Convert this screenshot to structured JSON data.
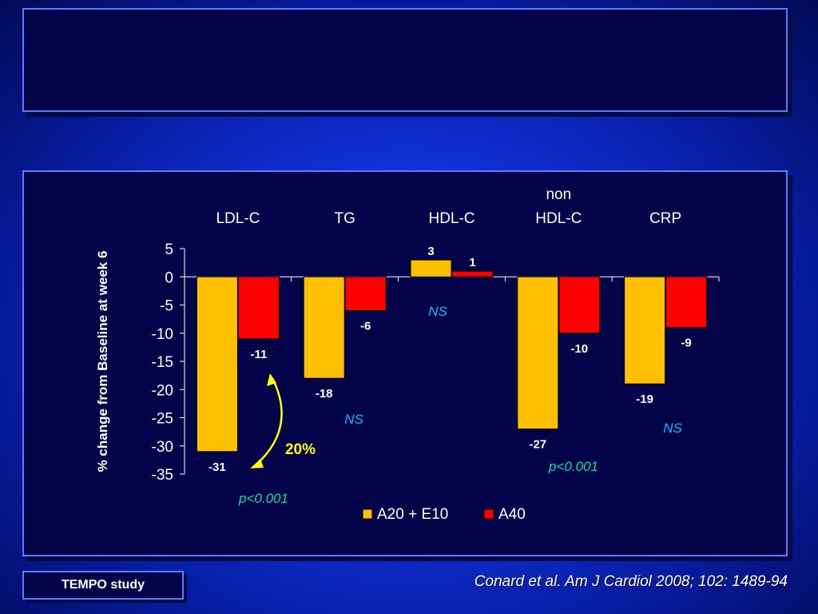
{
  "slide": {
    "title_lines": [
      "",
      "",
      ""
    ],
    "subtitle": "",
    "study_label": "TEMPO study",
    "citation": "Conard et al. Am J Cardiol 2008; 102: 1489-94"
  },
  "colors": {
    "series_a": "#ffc000",
    "series_b": "#ff0000",
    "text": "#ffffff",
    "highlight": "#ffff00",
    "annotation_ns": "#00bfff",
    "annotation_p": "#00e0a0"
  },
  "chart_data": {
    "type": "bar",
    "categories": [
      "LDL-C",
      "TG",
      "HDL-C",
      "non\nHDL-C",
      "CRP"
    ],
    "series": [
      {
        "name": "A20 + E10",
        "values": [
          -31,
          -18,
          3,
          -27,
          -19
        ]
      },
      {
        "name": "A40",
        "values": [
          -11,
          -6,
          1,
          -10,
          -9
        ]
      }
    ],
    "ylabel": "% change from Baseline at week 6",
    "ylim": [
      -35,
      5
    ],
    "yticks": [
      5,
      0,
      -5,
      -10,
      -15,
      -20,
      -25,
      -30,
      -35
    ],
    "legend_position": "bottom",
    "annotations": {
      "significance": [
        "p<0.001",
        "NS",
        "NS",
        "p<0.001",
        "NS"
      ],
      "difference_label": "20%"
    }
  }
}
